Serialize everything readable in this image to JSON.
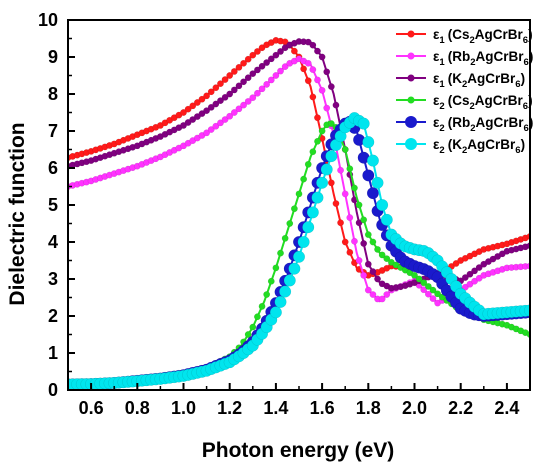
{
  "chart_data": {
    "type": "line",
    "xlabel": "Photon energy (eV)",
    "ylabel": "Dielectric function",
    "xlim": [
      0.5,
      2.5
    ],
    "ylim": [
      0,
      10
    ],
    "xticks": [
      0.6,
      0.8,
      1.0,
      1.2,
      1.4,
      1.6,
      1.8,
      2.0,
      2.2,
      2.4
    ],
    "xtick_labels": [
      "0.6",
      "0.8",
      "1.0",
      "1.2",
      "1.4",
      "1.6",
      "1.8",
      "2.0",
      "2.2",
      "2.4"
    ],
    "yticks": [
      0,
      1,
      2,
      3,
      4,
      5,
      6,
      7,
      8,
      9,
      10
    ],
    "ytick_labels": [
      "0",
      "1",
      "2",
      "3",
      "4",
      "5",
      "6",
      "7",
      "8",
      "9",
      "10"
    ],
    "legend_position": "top-right",
    "grid": false,
    "series": [
      {
        "name": "ε1 (Cs2AgCrBr6)",
        "legend": {
          "sym": "ε",
          "sub": "1",
          "parts": [
            [
              "(Cs",
              ""
            ],
            [
              "2",
              "sub"
            ],
            [
              "AgCrBr",
              ""
            ],
            [
              "6",
              "sub"
            ],
            [
              ")",
              ""
            ]
          ]
        },
        "color": "#ff1a1a",
        "marker_size": "small",
        "x": [
          0.5,
          0.6,
          0.7,
          0.8,
          0.9,
          1.0,
          1.1,
          1.2,
          1.3,
          1.35,
          1.4,
          1.45,
          1.5,
          1.55,
          1.6,
          1.65,
          1.7,
          1.75,
          1.8,
          1.85,
          1.9,
          2.0,
          2.1,
          2.2,
          2.3,
          2.4,
          2.5
        ],
        "y": [
          6.28,
          6.45,
          6.65,
          6.9,
          7.15,
          7.5,
          7.95,
          8.5,
          9.05,
          9.3,
          9.45,
          9.4,
          9.0,
          8.2,
          6.8,
          5.3,
          4.0,
          3.3,
          3.1,
          3.2,
          3.35,
          3.3,
          3.1,
          3.5,
          3.8,
          3.95,
          4.15
        ]
      },
      {
        "name": "ε1 (Rb2AgCrBr6)",
        "legend": {
          "sym": "ε",
          "sub": "1",
          "parts": [
            [
              "(Rb",
              ""
            ],
            [
              "2",
              "sub"
            ],
            [
              "AgCrBr",
              ""
            ],
            [
              "6",
              "sub"
            ],
            [
              ")",
              ""
            ]
          ]
        },
        "color": "#ff33ff",
        "marker_size": "small",
        "x": [
          0.5,
          0.6,
          0.7,
          0.8,
          0.9,
          1.0,
          1.1,
          1.2,
          1.3,
          1.4,
          1.45,
          1.5,
          1.55,
          1.6,
          1.65,
          1.7,
          1.75,
          1.8,
          1.85,
          1.9,
          2.0,
          2.1,
          2.2,
          2.3,
          2.4,
          2.5
        ],
        "y": [
          5.5,
          5.65,
          5.85,
          6.05,
          6.3,
          6.6,
          6.95,
          7.4,
          7.9,
          8.5,
          8.8,
          8.95,
          8.8,
          8.1,
          6.9,
          5.3,
          3.7,
          2.7,
          2.4,
          2.7,
          2.95,
          2.35,
          2.7,
          3.1,
          3.3,
          3.35
        ]
      },
      {
        "name": "ε1 (K2AgCrBr6)",
        "legend": {
          "sym": "ε",
          "sub": "1",
          "parts": [
            [
              "(K",
              ""
            ],
            [
              "2",
              "sub"
            ],
            [
              "AgCrBr",
              ""
            ],
            [
              "6",
              "sub"
            ],
            [
              ")",
              ""
            ]
          ]
        },
        "color": "#800080",
        "marker_size": "small",
        "x": [
          0.5,
          0.6,
          0.7,
          0.8,
          0.9,
          1.0,
          1.1,
          1.2,
          1.3,
          1.4,
          1.45,
          1.5,
          1.55,
          1.6,
          1.65,
          1.7,
          1.75,
          1.8,
          1.85,
          1.9,
          1.95,
          2.0,
          2.1,
          2.2,
          2.3,
          2.4,
          2.5
        ],
        "y": [
          6.05,
          6.2,
          6.4,
          6.6,
          6.85,
          7.15,
          7.55,
          8.0,
          8.55,
          9.05,
          9.3,
          9.42,
          9.4,
          9.0,
          8.0,
          6.5,
          4.8,
          3.4,
          2.9,
          2.75,
          2.8,
          2.9,
          3.15,
          2.95,
          3.4,
          3.75,
          3.9
        ]
      },
      {
        "name": "ε2 (Cs2AgCrBr6)",
        "legend": {
          "sym": "ε",
          "sub": "2",
          "parts": [
            [
              "(Cs",
              ""
            ],
            [
              "2",
              "sub"
            ],
            [
              "AgCrBr",
              ""
            ],
            [
              "6",
              "sub"
            ],
            [
              ")",
              ""
            ]
          ]
        },
        "color": "#22dd22",
        "marker_size": "small",
        "x": [
          0.5,
          0.6,
          0.7,
          0.8,
          0.9,
          1.0,
          1.1,
          1.2,
          1.25,
          1.3,
          1.35,
          1.4,
          1.45,
          1.5,
          1.55,
          1.6,
          1.63,
          1.66,
          1.7,
          1.75,
          1.8,
          1.85,
          1.9,
          2.0,
          2.1,
          2.2,
          2.3,
          2.4,
          2.5
        ],
        "y": [
          0.15,
          0.17,
          0.2,
          0.26,
          0.33,
          0.43,
          0.6,
          0.9,
          1.2,
          1.7,
          2.4,
          3.3,
          4.3,
          5.3,
          6.3,
          7.0,
          7.25,
          7.1,
          6.5,
          5.2,
          4.2,
          3.7,
          3.45,
          3.1,
          2.6,
          2.15,
          1.9,
          1.75,
          1.5
        ]
      },
      {
        "name": "ε2 (Rb2AgCrBr6)",
        "legend": {
          "sym": "ε",
          "sub": "2",
          "parts": [
            [
              "(Rb",
              ""
            ],
            [
              "2",
              "sub"
            ],
            [
              "AgCrBr",
              ""
            ],
            [
              "6",
              "sub"
            ],
            [
              ")",
              ""
            ]
          ]
        },
        "color": "#1a1acc",
        "marker_size": "large",
        "x": [
          0.5,
          0.6,
          0.7,
          0.8,
          0.9,
          1.0,
          1.1,
          1.2,
          1.25,
          1.3,
          1.35,
          1.4,
          1.45,
          1.5,
          1.55,
          1.6,
          1.65,
          1.7,
          1.72,
          1.75,
          1.8,
          1.85,
          1.9,
          1.95,
          2.0,
          2.05,
          2.1,
          2.15,
          2.2,
          2.25,
          2.3,
          2.4,
          2.5
        ],
        "y": [
          0.15,
          0.16,
          0.19,
          0.25,
          0.31,
          0.4,
          0.55,
          0.8,
          1.0,
          1.3,
          1.75,
          2.35,
          3.1,
          4.0,
          5.0,
          6.0,
          6.8,
          7.2,
          7.25,
          7.0,
          5.8,
          4.6,
          3.9,
          3.5,
          3.35,
          3.25,
          3.05,
          2.6,
          2.2,
          2.05,
          2.0,
          2.05,
          2.1
        ]
      },
      {
        "name": "ε2 (K2AgCrBr6)",
        "legend": {
          "sym": "ε",
          "sub": "2",
          "parts": [
            [
              "(K",
              ""
            ],
            [
              "2",
              "sub"
            ],
            [
              "AgCrBr",
              ""
            ],
            [
              "6",
              "sub"
            ],
            [
              ")",
              ""
            ]
          ]
        },
        "color": "#00e5ee",
        "marker_size": "large",
        "x": [
          0.5,
          0.6,
          0.7,
          0.8,
          0.9,
          1.0,
          1.1,
          1.2,
          1.25,
          1.3,
          1.35,
          1.4,
          1.45,
          1.5,
          1.55,
          1.6,
          1.65,
          1.7,
          1.74,
          1.78,
          1.82,
          1.86,
          1.9,
          1.95,
          2.0,
          2.05,
          2.1,
          2.15,
          2.2,
          2.25,
          2.3,
          2.4,
          2.5
        ],
        "y": [
          0.15,
          0.16,
          0.19,
          0.24,
          0.3,
          0.38,
          0.52,
          0.75,
          0.95,
          1.2,
          1.6,
          2.1,
          2.8,
          3.6,
          4.6,
          5.6,
          6.5,
          7.1,
          7.35,
          7.2,
          6.2,
          5.0,
          4.2,
          3.9,
          3.8,
          3.75,
          3.5,
          3.1,
          2.6,
          2.3,
          2.05,
          2.1,
          2.15
        ]
      }
    ]
  }
}
